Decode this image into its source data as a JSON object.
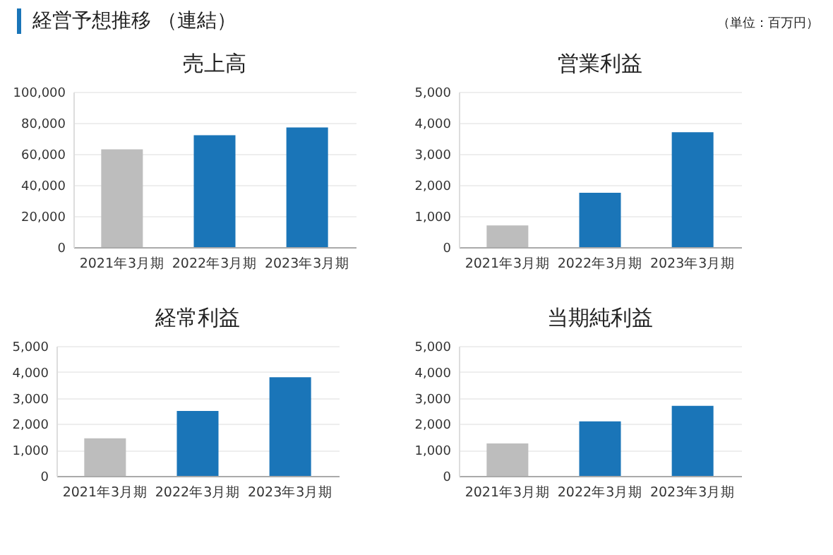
{
  "chart_data": [
    {
      "type": "bar",
      "title": "売上高",
      "annotations": [
        "経営予想推移 （連結）",
        "（単位：百万円）"
      ],
      "categories": [
        "2021年3月期",
        "2022年3月期",
        "2023年3月期"
      ],
      "values": [
        63000,
        72000,
        77000
      ],
      "colors": [
        "#bdbdbd",
        "#1a75b8",
        "#1a75b8"
      ],
      "ylim": [
        0,
        100000
      ],
      "yticks": [
        {
          "value": 0,
          "label": "0"
        },
        {
          "value": 20000,
          "label": "20,000"
        },
        {
          "value": 40000,
          "label": "40,000"
        },
        {
          "value": 60000,
          "label": "60,000"
        },
        {
          "value": 80000,
          "label": "80,000"
        },
        {
          "value": 100000,
          "label": "100,000"
        }
      ],
      "grid": "y"
    },
    {
      "type": "bar",
      "title": "営業利益",
      "categories": [
        "2021年3月期",
        "2022年3月期",
        "2023年3月期"
      ],
      "values": [
        700,
        1750,
        3700
      ],
      "colors": [
        "#bdbdbd",
        "#1a75b8",
        "#1a75b8"
      ],
      "ylim": [
        0,
        5000
      ],
      "yticks": [
        {
          "value": 0,
          "label": "0"
        },
        {
          "value": 1000,
          "label": "1,000"
        },
        {
          "value": 2000,
          "label": "2,000"
        },
        {
          "value": 3000,
          "label": "3,000"
        },
        {
          "value": 4000,
          "label": "4,000"
        },
        {
          "value": 5000,
          "label": "5,000"
        }
      ],
      "grid": "y"
    },
    {
      "type": "bar",
      "title": "経常利益",
      "categories": [
        "2021年3月期",
        "2022年3月期",
        "2023年3月期"
      ],
      "values": [
        1450,
        2500,
        3800
      ],
      "colors": [
        "#bdbdbd",
        "#1a75b8",
        "#1a75b8"
      ],
      "ylim": [
        0,
        5000
      ],
      "yticks": [
        {
          "value": 0,
          "label": "0"
        },
        {
          "value": 1000,
          "label": "1,000"
        },
        {
          "value": 2000,
          "label": "2,000"
        },
        {
          "value": 3000,
          "label": "3,000"
        },
        {
          "value": 4000,
          "label": "4,000"
        },
        {
          "value": 5000,
          "label": "5,000"
        }
      ],
      "grid": "y"
    },
    {
      "type": "bar",
      "title": "当期純利益",
      "categories": [
        "2021年3月期",
        "2022年3月期",
        "2023年3月期"
      ],
      "values": [
        1250,
        2100,
        2700
      ],
      "colors": [
        "#bdbdbd",
        "#1a75b8",
        "#1a75b8"
      ],
      "ylim": [
        0,
        5000
      ],
      "yticks": [
        {
          "value": 0,
          "label": "0"
        },
        {
          "value": 1000,
          "label": "1,000"
        },
        {
          "value": 2000,
          "label": "2,000"
        },
        {
          "value": 3000,
          "label": "3,000"
        },
        {
          "value": 4000,
          "label": "4,000"
        },
        {
          "value": 5000,
          "label": "5,000"
        }
      ],
      "grid": "y"
    }
  ]
}
